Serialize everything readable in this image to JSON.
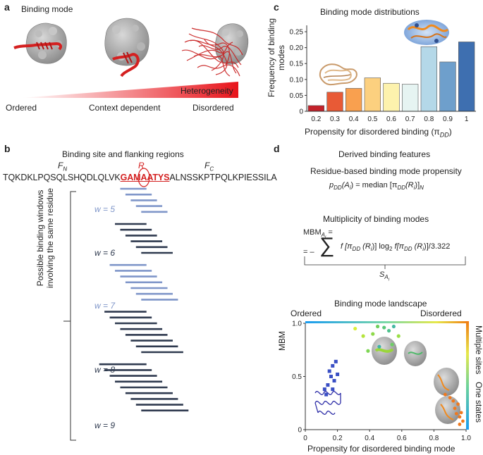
{
  "colors": {
    "red": "#d42020",
    "ordered_blue": "#2f2fa8",
    "dark_line": "#2f3a4f",
    "light_line": "#7f96c9",
    "protein_grey": "#a8a8a8",
    "gradient_start": "#ffffff",
    "gradient_end": "#e8141b"
  },
  "panel_a": {
    "letter": "a",
    "title": "Binding mode",
    "heterogeneity_label": "Heterogeneity",
    "axis_labels": [
      "Ordered",
      "Context dependent",
      "Disordered"
    ]
  },
  "panel_b": {
    "letter": "b",
    "title": "Binding site and flanking regions",
    "label_fn": "F",
    "label_fn_sub": "N",
    "label_r": "R",
    "label_fc": "F",
    "label_fc_sub": "C",
    "seq_left": "TQKDKLPQSQLSHQDLQLVK",
    "seq_core": "GAMAATYS",
    "seq_right": "ALNSSKPTPQLKPIESSILA",
    "vertical_label_line1": "Possible binding windows",
    "vertical_label_line2": "involving the same residue",
    "windows": [
      {
        "label": "w = 5",
        "w": 5,
        "color": "light"
      },
      {
        "label": "w = 6",
        "w": 6,
        "color": "dark"
      },
      {
        "label": "w = 7",
        "w": 7,
        "color": "light"
      },
      {
        "label": "w = 8",
        "w": 8,
        "color": "dark"
      },
      {
        "label": "w = 9",
        "w": 9,
        "color": "dark"
      }
    ]
  },
  "panel_c": {
    "letter": "c",
    "chart_data": {
      "type": "bar",
      "title": "Binding mode distributions",
      "xlabel": "Propensity for disordered binding (π",
      "xlabel_sub": "DD",
      "xlabel_end": ")",
      "ylabel_line1": "Frequency of binding",
      "ylabel_line2": "modes",
      "categories": [
        "0.2",
        "0.3",
        "0.4",
        "0.5",
        "0.6",
        "0.7",
        "0.8",
        "0.9",
        "1"
      ],
      "values": [
        0.018,
        0.06,
        0.072,
        0.105,
        0.088,
        0.085,
        0.203,
        0.155,
        0.218
      ],
      "bar_colors": [
        "#c3222a",
        "#e85a36",
        "#f9a04f",
        "#fcd07f",
        "#fdf2ad",
        "#e6f4f2",
        "#b4d8e8",
        "#6e9fcc",
        "#3e6fb0"
      ],
      "ylim": [
        0,
        0.27
      ],
      "yticks": [
        0,
        0.05,
        0.1,
        0.15,
        0.2,
        0.25
      ],
      "ytick_labels": [
        "0",
        "0.05",
        "0.10",
        "0.15",
        "0.20",
        "0.25"
      ]
    }
  },
  "panel_d": {
    "letter": "d",
    "title": "Derived binding features",
    "eq1_title": "Residue-based binding mode propensity",
    "eq1_lhs": "p",
    "eq1_lhs_sub": "DD",
    "eq1_arg": "(A",
    "eq1_arg_sub": "i",
    "eq1_mid": ") = median [π",
    "eq1_mid_sub": "DD",
    "eq1_ri": "(R",
    "eq1_ri_sub": "i",
    "eq1_end": ")]",
    "eq1_end_sub": "N",
    "eq2_title": "Multiplicity of binding modes",
    "eq2_lhs": "MBM",
    "eq2_lhs_sub": "A",
    "eq2_lhs_subsub": "i",
    "eq2_eq": "=",
    "eq2_neg": "= –",
    "sigma": "∑",
    "eq2_body_1": "f [π",
    "eq2_body_1_sub": "DD",
    "eq2_body_2": " (R",
    "eq2_body_2_sub": "i",
    "eq2_body_3": ")] log",
    "eq2_body_3_sub": "2",
    "eq2_body_4": " f[π",
    "eq2_body_4_sub": "DD",
    "eq2_body_5": " (R",
    "eq2_body_5_sub": "i",
    "eq2_body_6": ")]/3.322",
    "eq2_s": "S",
    "eq2_s_sub": "A",
    "eq2_s_subsub": "i",
    "landscape": {
      "title": "Binding mode landscape",
      "top_left": "Ordered",
      "top_right": "Disordered",
      "right_top": "Multiple sites",
      "right_bottom": "One states",
      "xlabel": "Propensity for disordered binding mode",
      "ylabel": "MBM",
      "xticks": [
        "0",
        "0.2",
        "0.4",
        "0.6",
        "0.8",
        "1.0"
      ],
      "yticks": [
        "0",
        "0.5",
        "1.0"
      ],
      "xlim": [
        0,
        1
      ],
      "ylim": [
        0,
        1
      ],
      "points_blue_squares": [
        [
          0.15,
          0.55
        ],
        [
          0.17,
          0.6
        ],
        [
          0.19,
          0.64
        ],
        [
          0.16,
          0.5
        ],
        [
          0.18,
          0.46
        ],
        [
          0.2,
          0.52
        ],
        [
          0.14,
          0.42
        ],
        [
          0.12,
          0.38
        ],
        [
          0.17,
          0.38
        ],
        [
          0.13,
          0.33
        ]
      ],
      "points_green": [
        [
          0.31,
          0.95
        ],
        [
          0.36,
          0.88
        ],
        [
          0.42,
          0.9
        ],
        [
          0.45,
          0.97
        ],
        [
          0.49,
          0.96
        ],
        [
          0.52,
          0.93
        ],
        [
          0.55,
          0.97
        ],
        [
          0.58,
          0.88
        ],
        [
          0.54,
          0.8
        ],
        [
          0.46,
          0.78
        ],
        [
          0.39,
          0.74
        ]
      ],
      "points_orange": [
        [
          0.87,
          0.33
        ],
        [
          0.9,
          0.3
        ],
        [
          0.92,
          0.27
        ],
        [
          0.95,
          0.24
        ],
        [
          0.93,
          0.2
        ],
        [
          0.97,
          0.16
        ],
        [
          0.96,
          0.12
        ],
        [
          0.98,
          0.08
        ],
        [
          0.96,
          0.05
        ],
        [
          0.94,
          0.15
        ]
      ]
    }
  }
}
